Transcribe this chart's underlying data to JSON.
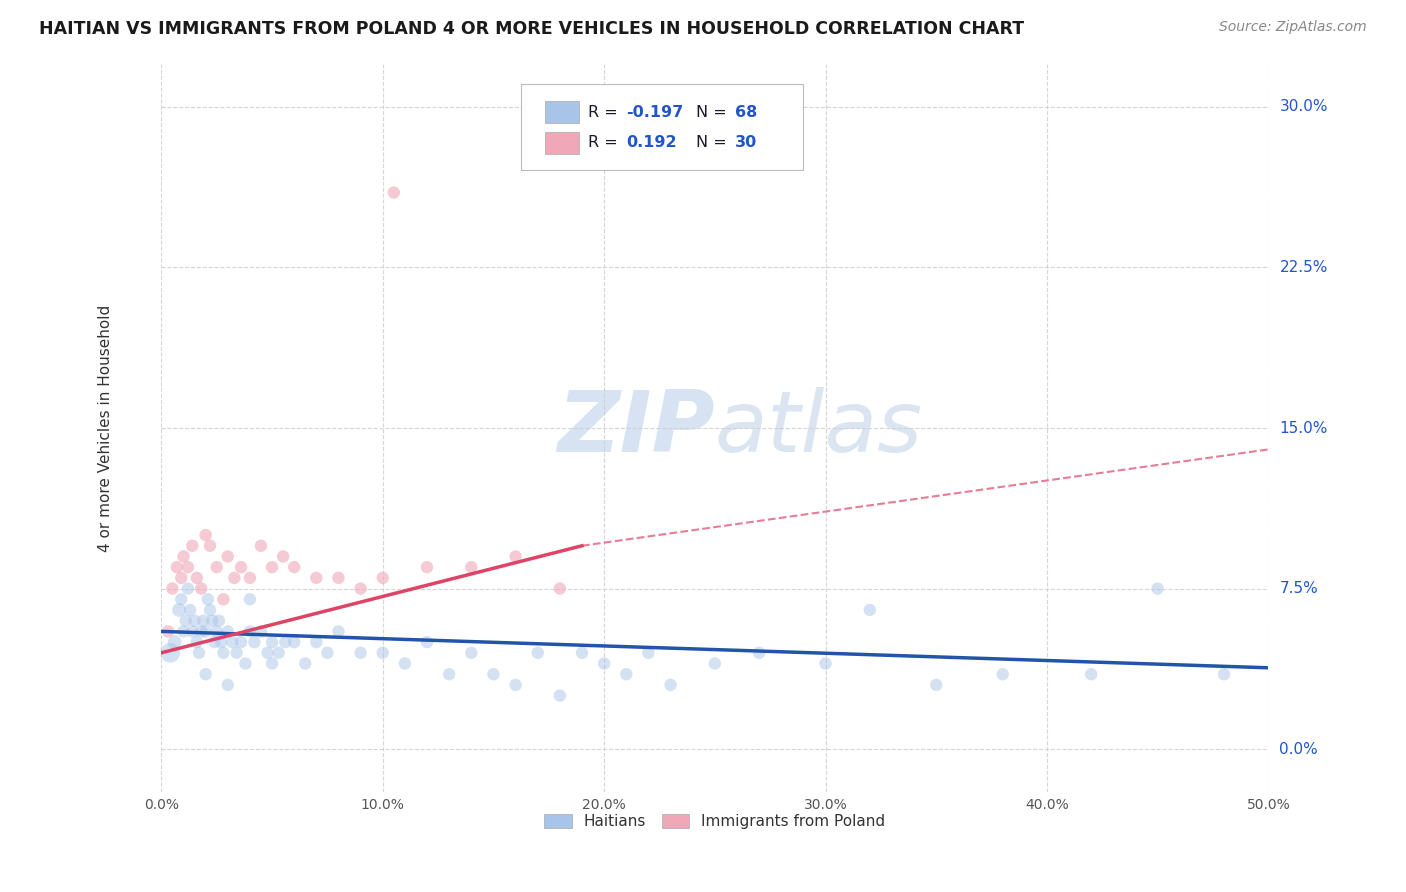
{
  "title": "HAITIAN VS IMMIGRANTS FROM POLAND 4 OR MORE VEHICLES IN HOUSEHOLD CORRELATION CHART",
  "source": "Source: ZipAtlas.com",
  "ylabel": "4 or more Vehicles in Household",
  "xlim": [
    0.0,
    50.0
  ],
  "ylim": [
    -2.0,
    32.0
  ],
  "ytick_vals": [
    0.0,
    7.5,
    15.0,
    22.5,
    30.0
  ],
  "ytick_labels": [
    "0.0%",
    "7.5%",
    "15.0%",
    "22.5%",
    "30.0%"
  ],
  "xtick_vals": [
    0.0,
    10.0,
    20.0,
    30.0,
    40.0,
    50.0
  ],
  "xtick_labels": [
    "0.0%",
    "10.0%",
    "20.0%",
    "30.0%",
    "40.0%",
    "50.0%"
  ],
  "legend_r1": "R = -0.197",
  "legend_n1": "N = 68",
  "legend_r2": "R =  0.192",
  "legend_n2": "N = 30",
  "blue_color": "#a8c4e8",
  "pink_color": "#f0a8b8",
  "blue_line_color": "#2255aa",
  "pink_line_color": "#dd4466",
  "text_dark": "#1a1a2e",
  "text_blue": "#2255cc",
  "watermark_color": "#d0dff0",
  "background_color": "#ffffff",
  "blue_scatter_x": [
    0.4,
    0.6,
    0.8,
    0.9,
    1.0,
    1.1,
    1.2,
    1.3,
    1.4,
    1.5,
    1.6,
    1.7,
    1.8,
    1.9,
    2.0,
    2.1,
    2.2,
    2.3,
    2.4,
    2.5,
    2.6,
    2.7,
    2.8,
    3.0,
    3.2,
    3.4,
    3.6,
    3.8,
    4.0,
    4.2,
    4.5,
    4.8,
    5.0,
    5.3,
    5.6,
    6.0,
    6.5,
    7.0,
    7.5,
    8.0,
    9.0,
    10.0,
    11.0,
    12.0,
    13.0,
    14.0,
    15.0,
    16.0,
    17.0,
    18.0,
    19.0,
    20.0,
    21.0,
    22.0,
    23.0,
    25.0,
    27.0,
    30.0,
    32.0,
    35.0,
    38.0,
    42.0,
    45.0,
    48.0,
    2.0,
    3.0,
    4.0,
    5.0
  ],
  "blue_scatter_y": [
    4.5,
    5.0,
    6.5,
    7.0,
    5.5,
    6.0,
    7.5,
    6.5,
    5.5,
    6.0,
    5.0,
    4.5,
    5.5,
    6.0,
    5.5,
    7.0,
    6.5,
    6.0,
    5.0,
    5.5,
    6.0,
    5.0,
    4.5,
    5.5,
    5.0,
    4.5,
    5.0,
    4.0,
    5.5,
    5.0,
    5.5,
    4.5,
    5.0,
    4.5,
    5.0,
    5.0,
    4.0,
    5.0,
    4.5,
    5.5,
    4.5,
    4.5,
    4.0,
    5.0,
    3.5,
    4.5,
    3.5,
    3.0,
    4.5,
    2.5,
    4.5,
    4.0,
    3.5,
    4.5,
    3.0,
    4.0,
    4.5,
    4.0,
    6.5,
    3.0,
    3.5,
    3.5,
    7.5,
    3.5,
    3.5,
    3.0,
    7.0,
    4.0
  ],
  "blue_scatter_s": [
    200,
    100,
    100,
    80,
    80,
    80,
    80,
    80,
    80,
    80,
    80,
    80,
    80,
    80,
    80,
    80,
    80,
    80,
    80,
    80,
    80,
    80,
    80,
    80,
    80,
    80,
    80,
    80,
    80,
    80,
    80,
    80,
    80,
    80,
    80,
    80,
    80,
    80,
    80,
    80,
    80,
    80,
    80,
    80,
    80,
    80,
    80,
    80,
    80,
    80,
    80,
    80,
    80,
    80,
    80,
    80,
    80,
    80,
    80,
    80,
    80,
    80,
    80,
    80,
    80,
    80,
    80,
    80
  ],
  "pink_scatter_x": [
    0.3,
    0.5,
    0.7,
    0.9,
    1.0,
    1.2,
    1.4,
    1.6,
    1.8,
    2.0,
    2.2,
    2.5,
    2.8,
    3.0,
    3.3,
    3.6,
    4.0,
    4.5,
    5.0,
    5.5,
    6.0,
    7.0,
    8.0,
    9.0,
    10.0,
    12.0,
    14.0,
    16.0,
    18.0,
    10.5
  ],
  "pink_scatter_y": [
    5.5,
    7.5,
    8.5,
    8.0,
    9.0,
    8.5,
    9.5,
    8.0,
    7.5,
    10.0,
    9.5,
    8.5,
    7.0,
    9.0,
    8.0,
    8.5,
    8.0,
    9.5,
    8.5,
    9.0,
    8.5,
    8.0,
    8.0,
    7.5,
    8.0,
    8.5,
    8.5,
    9.0,
    7.5,
    26.0
  ],
  "pink_scatter_s": [
    80,
    80,
    80,
    80,
    80,
    80,
    80,
    80,
    80,
    80,
    80,
    80,
    80,
    80,
    80,
    80,
    80,
    80,
    80,
    80,
    80,
    80,
    80,
    80,
    80,
    80,
    80,
    80,
    80,
    80
  ],
  "blue_trend_x0": 0.0,
  "blue_trend_x1": 50.0,
  "blue_trend_y0": 5.5,
  "blue_trend_y1": 3.8,
  "pink_solid_x0": 0.0,
  "pink_solid_x1": 19.0,
  "pink_solid_y0": 4.5,
  "pink_solid_y1": 9.5,
  "pink_dash_x0": 19.0,
  "pink_dash_x1": 50.0,
  "pink_dash_y0": 9.5,
  "pink_dash_y1": 14.0
}
